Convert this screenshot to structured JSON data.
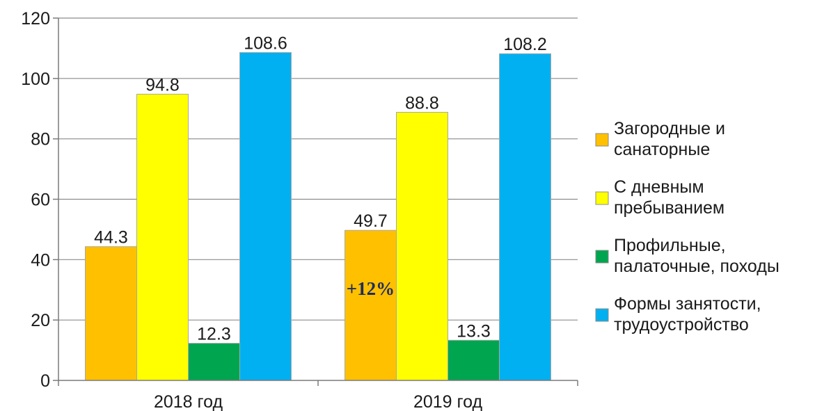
{
  "chart_data": {
    "type": "bar",
    "title": "",
    "xlabel": "",
    "ylabel": "",
    "ylim": [
      0,
      120
    ],
    "yticks": [
      0,
      20,
      40,
      60,
      80,
      100,
      120
    ],
    "grid": true,
    "legend_position": "right",
    "categories": [
      "2018 год",
      "2019 год"
    ],
    "series": [
      {
        "name": "Загородные и санаторные",
        "legend_lines": [
          "Загородные и",
          "санаторные"
        ],
        "color": "#FFC000",
        "values": [
          44.3,
          49.7
        ],
        "labels": [
          "44.3",
          "49.7"
        ]
      },
      {
        "name": "С дневным пребыванием",
        "legend_lines": [
          "С дневным",
          "пребыванием"
        ],
        "color": "#FFFF00",
        "values": [
          94.8,
          88.8
        ],
        "labels": [
          "94.8",
          "88.8"
        ]
      },
      {
        "name": "Профильные, палаточные, походы",
        "legend_lines": [
          "Профильные,",
          "палаточные, походы"
        ],
        "color": "#00A550",
        "values": [
          12.3,
          13.3
        ],
        "labels": [
          "12.3",
          "13.3"
        ]
      },
      {
        "name": "Формы занятости, трудоустройство",
        "legend_lines": [
          "Формы занятости,",
          "трудоустройство"
        ],
        "color": "#00B0F0",
        "values": [
          108.6,
          108.2
        ],
        "labels": [
          "108.6",
          "108.2"
        ]
      }
    ],
    "annotations": [
      {
        "text": "+12%",
        "category": "2019 год",
        "series_index": 0,
        "color": "#1F2D5C"
      }
    ]
  }
}
